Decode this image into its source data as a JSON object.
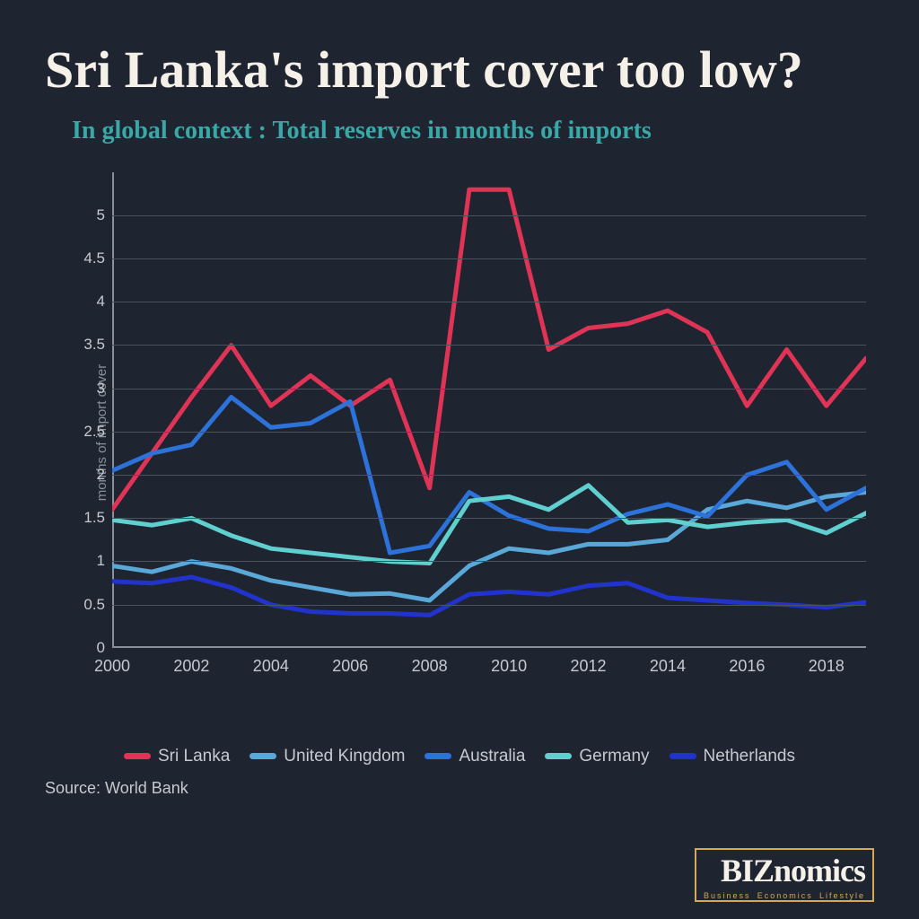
{
  "title": "Sri Lanka's import cover too low?",
  "subtitle": "In global context : Total reserves in months of imports",
  "y_axis_label": "months of import cover",
  "source": "Source: World Bank",
  "chart": {
    "type": "line",
    "background_color": "#1e2430",
    "grid_color": "#4a5260",
    "axis_color": "#8a9099",
    "text_color": "#c5cad0",
    "ylim": [
      0,
      5.5
    ],
    "ytick_step": 0.5,
    "yticks": [
      0,
      0.5,
      1,
      1.5,
      2,
      2.5,
      3,
      3.5,
      4,
      4.5,
      5
    ],
    "xlim": [
      2000,
      2019
    ],
    "xticks": [
      2000,
      2002,
      2004,
      2006,
      2008,
      2010,
      2012,
      2014,
      2016,
      2018
    ],
    "line_width": 5,
    "series": [
      {
        "name": "Sri Lanka",
        "color": "#e03456",
        "x": [
          2000,
          2001,
          2002,
          2003,
          2004,
          2005,
          2006,
          2007,
          2008,
          2009,
          2010,
          2011,
          2012,
          2013,
          2014,
          2015,
          2016,
          2017,
          2018,
          2019
        ],
        "y": [
          1.6,
          2.25,
          2.9,
          3.5,
          2.8,
          3.15,
          2.8,
          3.1,
          1.85,
          5.3,
          5.3,
          3.45,
          3.7,
          3.75,
          3.9,
          3.65,
          2.8,
          3.45,
          2.8,
          3.35
        ]
      },
      {
        "name": "United Kingdom",
        "color": "#5aa8d8",
        "x": [
          2000,
          2001,
          2002,
          2003,
          2004,
          2005,
          2006,
          2007,
          2008,
          2009,
          2010,
          2011,
          2012,
          2013,
          2014,
          2015,
          2016,
          2017,
          2018,
          2019
        ],
        "y": [
          0.95,
          0.88,
          1.0,
          0.92,
          0.78,
          0.7,
          0.62,
          0.63,
          0.55,
          0.95,
          1.15,
          1.1,
          1.2,
          1.2,
          1.25,
          1.6,
          1.7,
          1.62,
          1.75,
          1.8
        ]
      },
      {
        "name": "Australia",
        "color": "#2d72d9",
        "x": [
          2000,
          2001,
          2002,
          2003,
          2004,
          2005,
          2006,
          2007,
          2008,
          2009,
          2010,
          2011,
          2012,
          2013,
          2014,
          2015,
          2016,
          2017,
          2018,
          2019
        ],
        "y": [
          2.05,
          2.25,
          2.35,
          2.9,
          2.55,
          2.6,
          2.85,
          1.1,
          1.18,
          1.8,
          1.53,
          1.38,
          1.35,
          1.55,
          1.66,
          1.52,
          2.0,
          2.15,
          1.6,
          1.85
        ]
      },
      {
        "name": "Germany",
        "color": "#5fcfcf",
        "x": [
          2000,
          2001,
          2002,
          2003,
          2004,
          2005,
          2006,
          2007,
          2008,
          2009,
          2010,
          2011,
          2012,
          2013,
          2014,
          2015,
          2016,
          2017,
          2018,
          2019
        ],
        "y": [
          1.48,
          1.42,
          1.5,
          1.3,
          1.15,
          1.1,
          1.05,
          1.0,
          0.98,
          1.7,
          1.75,
          1.6,
          1.88,
          1.45,
          1.48,
          1.4,
          1.45,
          1.48,
          1.33,
          1.56
        ]
      },
      {
        "name": "Netherlands",
        "color": "#2233cc",
        "x": [
          2000,
          2001,
          2002,
          2003,
          2004,
          2005,
          2006,
          2007,
          2008,
          2009,
          2010,
          2011,
          2012,
          2013,
          2014,
          2015,
          2016,
          2017,
          2018,
          2019
        ],
        "y": [
          0.77,
          0.75,
          0.82,
          0.7,
          0.5,
          0.42,
          0.4,
          0.4,
          0.38,
          0.62,
          0.65,
          0.62,
          0.72,
          0.75,
          0.58,
          0.55,
          0.52,
          0.5,
          0.47,
          0.53
        ]
      }
    ]
  },
  "logo": {
    "brand_main": "BIZ",
    "brand_rest": "nomics",
    "tagline": [
      "Business",
      "Economics",
      "Lifestyle"
    ],
    "border_color": "#d4a952"
  }
}
